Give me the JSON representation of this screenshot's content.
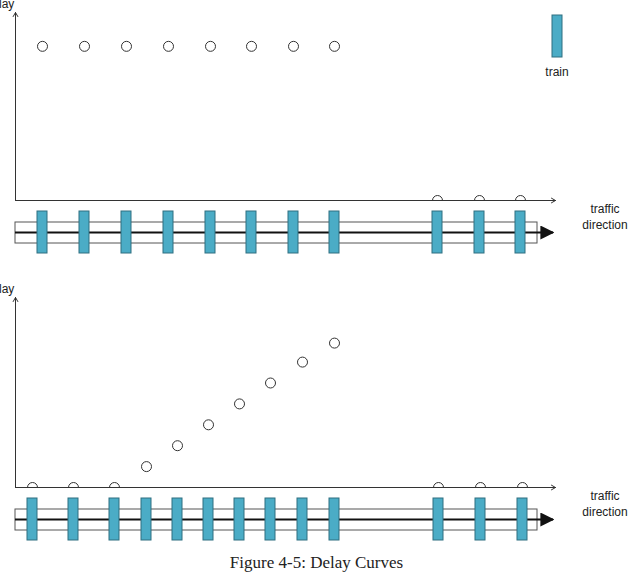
{
  "chart_data": [
    {
      "type": "scatter",
      "y_label": "delay",
      "x_label": "traffic direction",
      "legend": "top-right",
      "tick_labels": false,
      "grid": false,
      "xlim": [
        0,
        540
      ],
      "ylim": [
        0,
        100
      ],
      "x": [
        27,
        69,
        111,
        153,
        195,
        236,
        278,
        319,
        422,
        464,
        505
      ],
      "series": [
        {
          "name": "train",
          "color": "#4bacc6",
          "marker": "circle",
          "values": [
            82,
            82,
            82,
            82,
            82,
            82,
            82,
            82,
            0,
            0,
            0
          ]
        }
      ]
    },
    {
      "type": "scatter",
      "y_label": "delay",
      "x_label": "traffic direction",
      "tick_labels": false,
      "grid": false,
      "xlim": [
        0,
        540
      ],
      "ylim": [
        0,
        100
      ],
      "x": [
        17,
        58,
        99,
        131,
        162,
        193,
        224,
        255,
        287,
        319,
        423,
        465,
        507
      ],
      "series": [
        {
          "name": "train",
          "color": "#4bacc6",
          "marker": "circle",
          "values": [
            0,
            0,
            0,
            11,
            22,
            33,
            44,
            55,
            66,
            76,
            0,
            0,
            0
          ]
        }
      ]
    }
  ],
  "caption": "Figure 4-5: Delay Curves"
}
